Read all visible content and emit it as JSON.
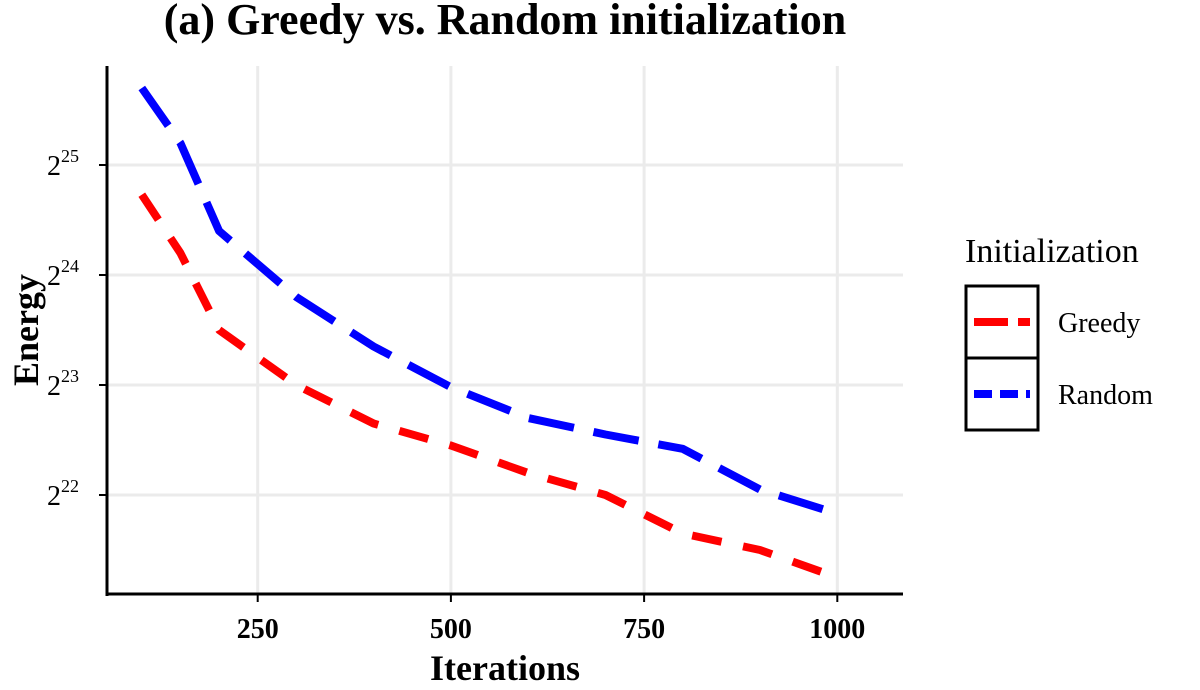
{
  "chart_data": {
    "type": "line",
    "title": "(a) Greedy vs. Random initialization",
    "xlabel": "Iterations",
    "ylabel": "Energy",
    "xlim": [
      55,
      1085
    ],
    "ylim_log2": [
      21.1,
      25.9
    ],
    "x_ticks": [
      250,
      500,
      750,
      1000
    ],
    "x_tick_labels": [
      "250",
      "500",
      "750",
      "1000"
    ],
    "y_ticks_log2": [
      22,
      23,
      24,
      25
    ],
    "y_tick_labels": [
      {
        "base": "2",
        "exp": "22"
      },
      {
        "base": "2",
        "exp": "23"
      },
      {
        "base": "2",
        "exp": "24"
      },
      {
        "base": "2",
        "exp": "25"
      }
    ],
    "grid": true,
    "legend": {
      "title": "Initialization",
      "placement": "right",
      "entries": [
        "Greedy",
        "Random"
      ]
    },
    "series": [
      {
        "name": "Greedy",
        "color": "#ff0000",
        "dash": "dashed",
        "x": [
          100,
          150,
          200,
          300,
          400,
          500,
          600,
          700,
          800,
          900,
          1000
        ],
        "log2_values": [
          24.73,
          24.2,
          23.5,
          23.0,
          22.65,
          22.45,
          22.2,
          22.0,
          21.65,
          21.5,
          21.25
        ]
      },
      {
        "name": "Random",
        "color": "#0000ff",
        "dash": "longdash",
        "x": [
          100,
          150,
          200,
          300,
          400,
          500,
          600,
          700,
          800,
          900,
          1000
        ],
        "log2_values": [
          25.7,
          25.2,
          24.4,
          23.8,
          23.35,
          22.98,
          22.7,
          22.55,
          22.42,
          22.05,
          21.83
        ]
      }
    ]
  }
}
